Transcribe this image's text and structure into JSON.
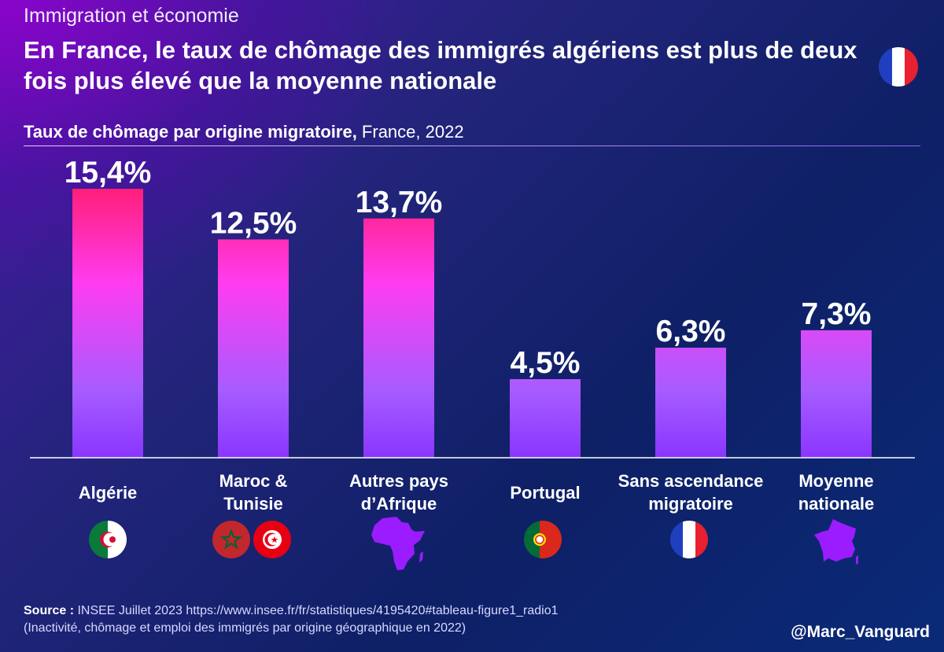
{
  "header": {
    "category": "Immigration et économie",
    "headline": "En France, le taux de chômage des immigrés algériens est plus de deux fois plus élevé que la moyenne nationale",
    "subtitle_bold": "Taux de chômage par origine migratoire,",
    "subtitle_rest": " France, 2022"
  },
  "chart_data": {
    "type": "bar",
    "title": "Taux de chômage par origine migratoire, France, 2022",
    "categories": [
      "Algérie",
      "Maroc & Tunisie",
      "Autres pays d’Afrique",
      "Portugal",
      "Sans ascendance migratoire",
      "Moyenne nationale"
    ],
    "category_lines": [
      [
        "Algérie"
      ],
      [
        "Maroc &",
        "Tunisie"
      ],
      [
        "Autres pays",
        "d’Afrique"
      ],
      [
        "Portugal"
      ],
      [
        "Sans ascendance",
        "migratoire"
      ],
      [
        "Moyenne",
        "nationale"
      ]
    ],
    "values": [
      15.4,
      12.5,
      13.7,
      4.5,
      6.3,
      7.3
    ],
    "value_labels": [
      "15,4%",
      "12,5%",
      "13,7%",
      "4,5%",
      "6,3%",
      "7,3%"
    ],
    "unit": "%",
    "ylim": [
      0,
      15.4
    ],
    "grid": false,
    "colors": {
      "high": "#ff1f7a",
      "mid": "#ff3cf0",
      "low": "#a65cff",
      "bottom": "#8a35ff",
      "axis": "#ffffff"
    }
  },
  "flags": [
    {
      "icon": "algeria-flag-icon"
    },
    {
      "icon": "morocco-flag-icon"
    },
    {
      "icon": "tunisia-flag-icon"
    },
    {
      "icon": "africa-map-icon"
    },
    {
      "icon": "portugal-flag-icon"
    },
    {
      "icon": "france-flag-icon"
    },
    {
      "icon": "france-map-icon"
    }
  ],
  "footer": {
    "source_label": "Source :",
    "source_text": " INSEE Juillet 2023 https://www.insee.fr/fr/statistiques/4195420#tableau-figure1_radio1",
    "source_note": "(Inactivité, chômage et emploi des immigrés par origine géographique en 2022)",
    "handle": "@Marc_Vanguard"
  }
}
